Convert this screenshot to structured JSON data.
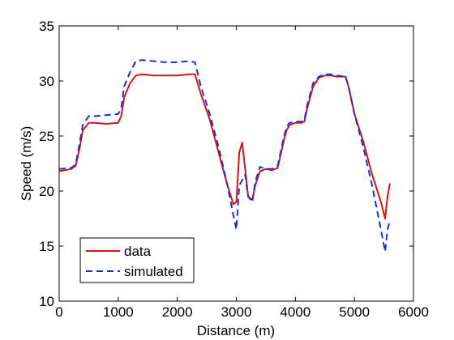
{
  "chart_data": {
    "type": "line",
    "title": "",
    "xlabel": "Distance (m)",
    "ylabel": "Speed (m/s)",
    "xlim": [
      0,
      6000
    ],
    "ylim": [
      10,
      35
    ],
    "xticks": [
      0,
      1000,
      2000,
      3000,
      4000,
      5000,
      6000
    ],
    "yticks": [
      10,
      15,
      20,
      25,
      30,
      35
    ],
    "grid": false,
    "legend_position": "bottom-left",
    "series": [
      {
        "name": "data",
        "color": "#dd1111",
        "style": "solid",
        "x": [
          0,
          200,
          280,
          350,
          400,
          500,
          600,
          800,
          1000,
          1050,
          1100,
          1200,
          1300,
          1400,
          1600,
          1800,
          2000,
          2200,
          2300,
          2400,
          2550,
          2700,
          2850,
          2950,
          3000,
          3050,
          3100,
          3150,
          3200,
          3270,
          3320,
          3400,
          3500,
          3600,
          3700,
          3800,
          3850,
          3900,
          4000,
          4100,
          4150,
          4200,
          4300,
          4400,
          4500,
          4600,
          4700,
          4850,
          4900,
          5000,
          5150,
          5300,
          5450,
          5520,
          5560,
          5600
        ],
        "y": [
          21.8,
          22.0,
          22.3,
          24.0,
          25.5,
          26.2,
          26.2,
          26.1,
          26.2,
          26.8,
          28.5,
          29.8,
          30.5,
          30.6,
          30.5,
          30.5,
          30.5,
          30.6,
          30.6,
          28.8,
          26.5,
          23.5,
          20.5,
          18.8,
          19.0,
          23.5,
          24.4,
          22.0,
          19.5,
          19.2,
          20.5,
          21.8,
          22.0,
          21.9,
          22.1,
          24.5,
          25.5,
          26.0,
          26.2,
          26.2,
          26.3,
          27.5,
          29.5,
          30.3,
          30.5,
          30.5,
          30.4,
          30.4,
          29.5,
          27.0,
          24.5,
          21.5,
          19.0,
          17.5,
          19.5,
          20.7
        ]
      },
      {
        "name": "simulated",
        "color": "#1a2fd6",
        "style": "dashed",
        "x": [
          0,
          200,
          280,
          350,
          400,
          500,
          600,
          800,
          1000,
          1050,
          1100,
          1200,
          1300,
          1400,
          1600,
          1800,
          2000,
          2200,
          2300,
          2400,
          2550,
          2700,
          2850,
          2950,
          3000,
          3050,
          3100,
          3150,
          3200,
          3270,
          3320,
          3400,
          3500,
          3600,
          3700,
          3800,
          3850,
          3900,
          4000,
          4100,
          4150,
          4200,
          4300,
          4400,
          4500,
          4600,
          4700,
          4850,
          4900,
          5000,
          5150,
          5300,
          5450,
          5520,
          5560,
          5600
        ],
        "y": [
          22.0,
          22.1,
          22.4,
          24.5,
          26.0,
          26.8,
          26.8,
          26.9,
          27.0,
          27.5,
          29.5,
          30.8,
          31.8,
          31.9,
          31.8,
          31.7,
          31.7,
          31.8,
          31.7,
          29.5,
          27.0,
          24.0,
          20.5,
          17.8,
          16.5,
          20.5,
          21.0,
          21.5,
          19.5,
          19.0,
          20.8,
          22.2,
          22.0,
          22.0,
          22.3,
          24.8,
          25.8,
          26.2,
          26.3,
          26.3,
          26.4,
          27.8,
          29.8,
          30.4,
          30.6,
          30.6,
          30.5,
          30.4,
          29.5,
          27.0,
          24.0,
          20.5,
          16.5,
          14.5,
          16.5,
          17.3
        ]
      }
    ]
  }
}
